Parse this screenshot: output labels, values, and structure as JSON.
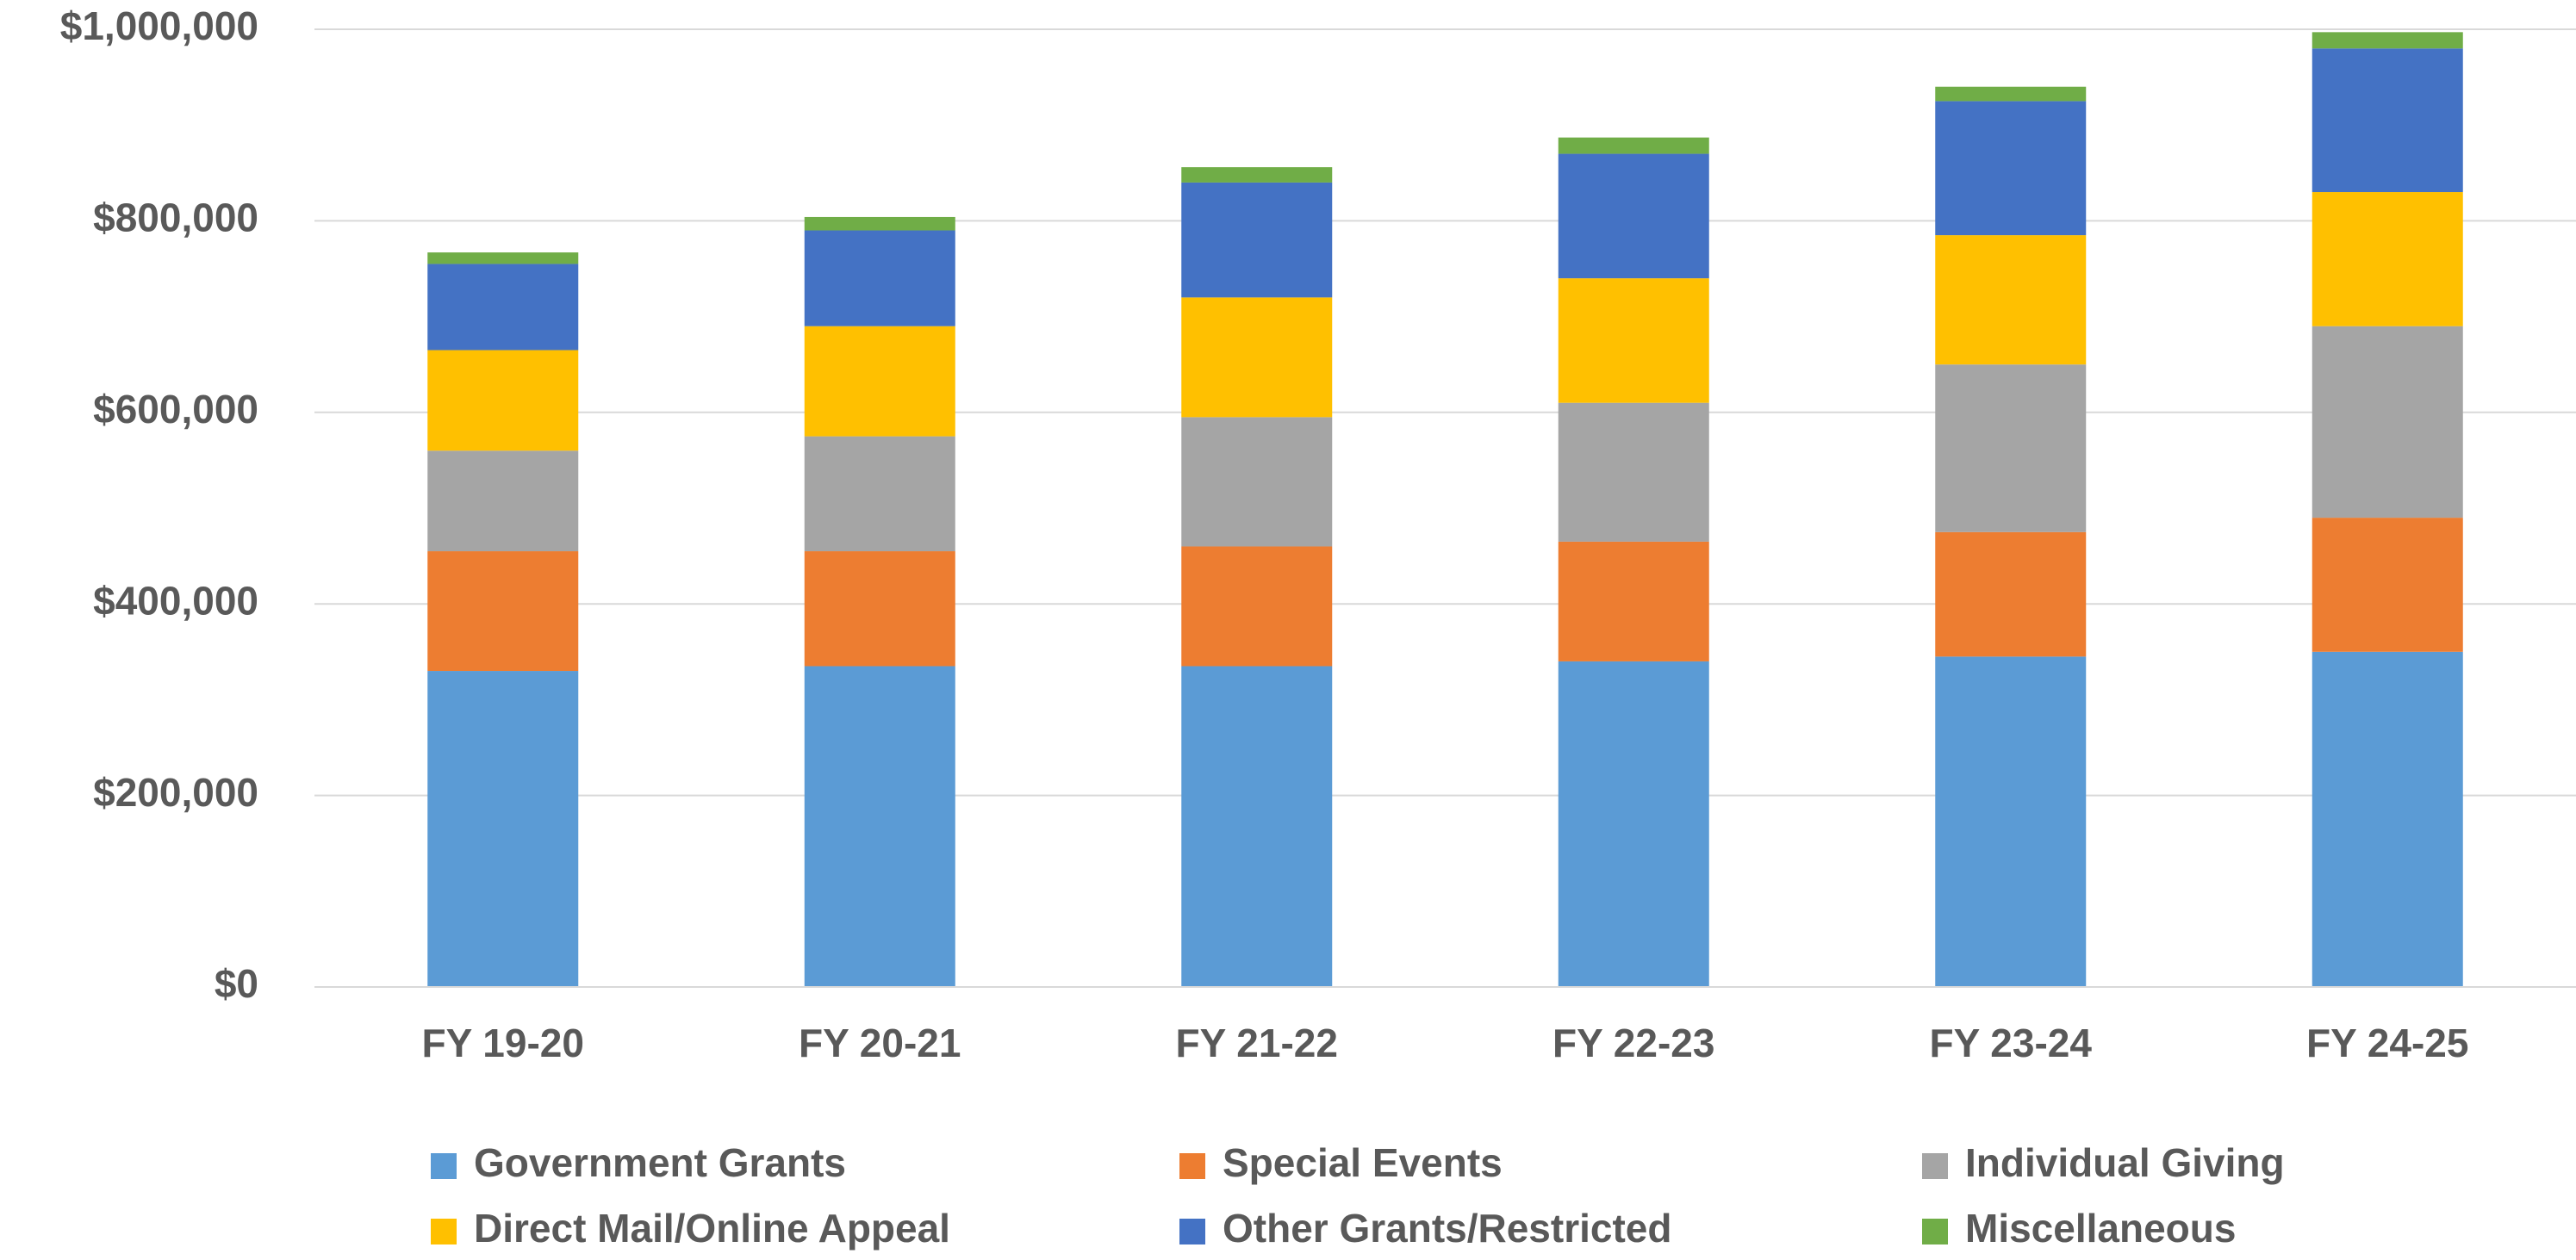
{
  "chart_data": {
    "type": "stacked_bar",
    "categories": [
      "FY 19-20",
      "FY 20-21",
      "FY 21-22",
      "FY 22-23",
      "FY 23-24",
      "FY 24-25"
    ],
    "series": [
      {
        "name": "Government Grants",
        "color": "#5b9bd5",
        "values": [
          330000,
          335000,
          335000,
          340000,
          345000,
          350000
        ]
      },
      {
        "name": "Special Events",
        "color": "#ed7d31",
        "values": [
          125000,
          120000,
          125000,
          125000,
          130000,
          140000
        ]
      },
      {
        "name": "Individual Giving",
        "color": "#a5a5a5",
        "values": [
          105000,
          120000,
          135000,
          145000,
          175000,
          200000
        ]
      },
      {
        "name": "Direct Mail/Online Appeal",
        "color": "#ffc000",
        "values": [
          105000,
          115000,
          125000,
          130000,
          135000,
          140000
        ]
      },
      {
        "name": "Other Grants/Restricted",
        "color": "#4472c4",
        "values": [
          90000,
          100000,
          120000,
          130000,
          140000,
          150000
        ]
      },
      {
        "name": "Miscellaneous",
        "color": "#70ad47",
        "values": [
          12000,
          14000,
          16000,
          17000,
          15000,
          17000
        ]
      }
    ],
    "ylim": [
      0,
      1000000
    ],
    "yticks": [
      {
        "value": 0,
        "label": "$0"
      },
      {
        "value": 200000,
        "label": "$200,000"
      },
      {
        "value": 400000,
        "label": "$400,000"
      },
      {
        "value": 600000,
        "label": "$600,000"
      },
      {
        "value": 800000,
        "label": "$800,000"
      },
      {
        "value": 1000000,
        "label": "$1,000,000"
      }
    ],
    "grid": true,
    "legend": "bottom"
  }
}
